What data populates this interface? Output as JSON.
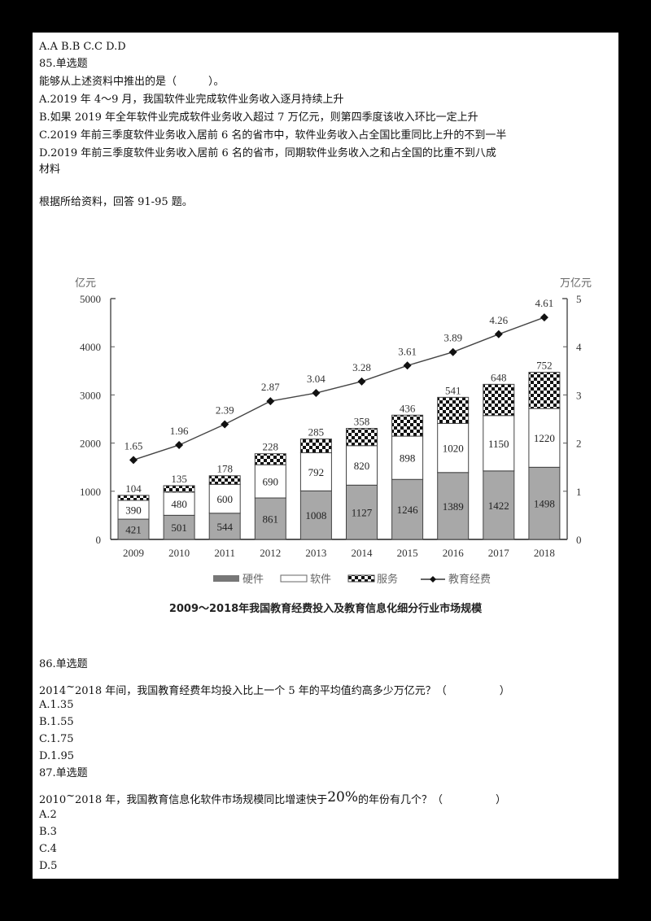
{
  "q84_answer_options": "A.A  B.B  C.C  D.D",
  "q85": {
    "header": "85.单选题",
    "stem": "能够从上述资料中推出的是（　　　）。",
    "options": [
      "A.2019 年 4～9 月，我国软件业完成软件业务收入逐月持续上升",
      "B.如果 2019 年全年软件业完成软件业务收入超过 7 万亿元，则第四季度该收入环比一定上升",
      "C.2019 年前三季度软件业务收入居前 6 名的省市中，软件业务收入占全国比重同比上升的不到一半",
      "D.2019 年前三季度软件业务收入居前 6 名的省市，同期软件业务收入之和占全国的比重不到八成"
    ]
  },
  "material_label": "材料",
  "material_intro": "根据所给资料，回答 91-95 题。",
  "chart_data": {
    "type": "bar",
    "subtype": "stacked_bar_with_line_secondary_axis",
    "title": "2009～2018年我国教育经费投入及教育信息化细分行业市场规模",
    "categories": [
      "2009",
      "2010",
      "2011",
      "2012",
      "2013",
      "2014",
      "2015",
      "2016",
      "2017",
      "2018"
    ],
    "series": [
      {
        "name": "硬件",
        "type": "bar",
        "axis": "left",
        "color": "#a8a8a8",
        "values": [
          421,
          501,
          544,
          861,
          1008,
          1127,
          1246,
          1389,
          1422,
          1498
        ]
      },
      {
        "name": "软件",
        "type": "bar",
        "axis": "left",
        "color": "#ffffff",
        "values": [
          390,
          480,
          600,
          690,
          792,
          820,
          898,
          1020,
          1150,
          1220
        ]
      },
      {
        "name": "服务",
        "type": "bar",
        "axis": "left",
        "pattern": "checker",
        "values": [
          104,
          135,
          178,
          228,
          285,
          358,
          436,
          541,
          648,
          752
        ]
      },
      {
        "name": "教育经费",
        "type": "line",
        "axis": "right",
        "marker": "diamond",
        "values": [
          1.65,
          1.96,
          2.39,
          2.87,
          3.04,
          3.28,
          3.61,
          3.89,
          4.26,
          4.61
        ]
      }
    ],
    "ylabel": "亿元",
    "ylabel_right": "万亿元",
    "ylim": [
      0,
      5000
    ],
    "ylim_right": [
      0,
      5
    ],
    "yticks": [
      "0",
      "1000",
      "2000",
      "3000",
      "4000",
      "5000"
    ],
    "yticks_right": [
      "0",
      "1",
      "2",
      "3",
      "4",
      "5"
    ],
    "legend": [
      "硬件",
      "软件",
      "服务",
      "教育经费"
    ],
    "legend_position": "bottom",
    "grid": false
  },
  "q86": {
    "header": "86.单选题",
    "stem_pre": "2014",
    "stem_tilde": "~",
    "stem_post": "2018 年间，我国教育经费年均投入比上一个 5 年的平均值约高多少万亿元？（　　　　　）",
    "options": [
      "A.1.35",
      "B.1.55",
      "C.1.75",
      "D.1.95"
    ]
  },
  "q87": {
    "header": "87.单选题",
    "stem_pre": "2010",
    "stem_tilde": "~",
    "stem_mid": "2018 年，我国教育信息化软件市场规模同比增速快于",
    "stem_pct": "20%",
    "stem_post": "的年份有几个？（　　　　　）",
    "options": [
      "A.2",
      "B.3",
      "C.4",
      "D.5"
    ]
  }
}
